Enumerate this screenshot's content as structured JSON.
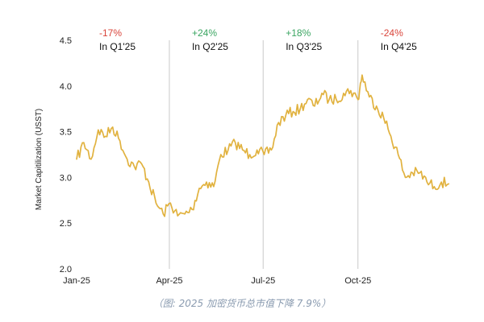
{
  "chart_data": {
    "type": "line",
    "ylabel": "Market Capitilization (USST)",
    "xlabel": "",
    "ylim": [
      2.0,
      4.5
    ],
    "yticks": [
      2.0,
      2.5,
      3.0,
      3.5,
      4.0,
      4.5
    ],
    "xlim": [
      "2025-01-01",
      "2025-12-31"
    ],
    "xticks": [
      {
        "label": "Jan-25",
        "date": "2025-01-01"
      },
      {
        "label": "Apr-25",
        "date": "2025-04-01"
      },
      {
        "label": "Jul-25",
        "date": "2025-07-01"
      },
      {
        "label": "Oct-25",
        "date": "2025-10-01"
      }
    ],
    "quarter_dividers": [
      "2025-04-01",
      "2025-07-01",
      "2025-10-01"
    ],
    "grid": false,
    "line_color": "#e1b23f",
    "series": [
      {
        "points": [
          [
            "2025-01-01",
            3.2
          ],
          [
            "2025-01-08",
            3.38
          ],
          [
            "2025-01-15",
            3.2
          ],
          [
            "2025-01-22",
            3.52
          ],
          [
            "2025-01-29",
            3.45
          ],
          [
            "2025-02-05",
            3.55
          ],
          [
            "2025-02-12",
            3.4
          ],
          [
            "2025-02-19",
            3.2
          ],
          [
            "2025-02-26",
            3.12
          ],
          [
            "2025-03-05",
            3.15
          ],
          [
            "2025-03-12",
            2.95
          ],
          [
            "2025-03-19",
            2.72
          ],
          [
            "2025-03-26",
            2.6
          ],
          [
            "2025-04-02",
            2.72
          ],
          [
            "2025-04-09",
            2.58
          ],
          [
            "2025-04-16",
            2.6
          ],
          [
            "2025-04-23",
            2.65
          ],
          [
            "2025-04-30",
            2.88
          ],
          [
            "2025-05-07",
            2.95
          ],
          [
            "2025-05-14",
            2.9
          ],
          [
            "2025-05-21",
            3.25
          ],
          [
            "2025-05-28",
            3.3
          ],
          [
            "2025-06-04",
            3.38
          ],
          [
            "2025-06-11",
            3.3
          ],
          [
            "2025-06-18",
            3.25
          ],
          [
            "2025-06-25",
            3.3
          ],
          [
            "2025-07-02",
            3.25
          ],
          [
            "2025-07-09",
            3.3
          ],
          [
            "2025-07-16",
            3.6
          ],
          [
            "2025-07-23",
            3.68
          ],
          [
            "2025-07-30",
            3.72
          ],
          [
            "2025-08-06",
            3.75
          ],
          [
            "2025-08-13",
            3.85
          ],
          [
            "2025-08-20",
            3.78
          ],
          [
            "2025-08-27",
            3.92
          ],
          [
            "2025-09-03",
            3.85
          ],
          [
            "2025-09-10",
            3.85
          ],
          [
            "2025-09-17",
            3.92
          ],
          [
            "2025-09-24",
            3.95
          ],
          [
            "2025-10-01",
            3.85
          ],
          [
            "2025-10-05",
            4.12
          ],
          [
            "2025-10-12",
            3.88
          ],
          [
            "2025-10-19",
            3.78
          ],
          [
            "2025-10-26",
            3.65
          ],
          [
            "2025-11-02",
            3.45
          ],
          [
            "2025-11-09",
            3.25
          ],
          [
            "2025-11-16",
            3.0
          ],
          [
            "2025-11-23",
            3.05
          ],
          [
            "2025-11-30",
            3.05
          ],
          [
            "2025-12-07",
            2.95
          ],
          [
            "2025-12-14",
            2.9
          ],
          [
            "2025-12-21",
            2.95
          ],
          [
            "2025-12-28",
            2.93
          ]
        ]
      }
    ],
    "annotations": [
      {
        "pct": "-17%",
        "label": "In Q1'25",
        "color": "#d9443a"
      },
      {
        "pct": "+24%",
        "label": "In Q2'25",
        "color": "#3aa561"
      },
      {
        "pct": "+18%",
        "label": "In Q3'25",
        "color": "#3aa561"
      },
      {
        "pct": "-24%",
        "label": "In Q4'25",
        "color": "#d9443a"
      }
    ]
  },
  "caption": "（图: 2025 加密货币总市值下降 7.9%）"
}
